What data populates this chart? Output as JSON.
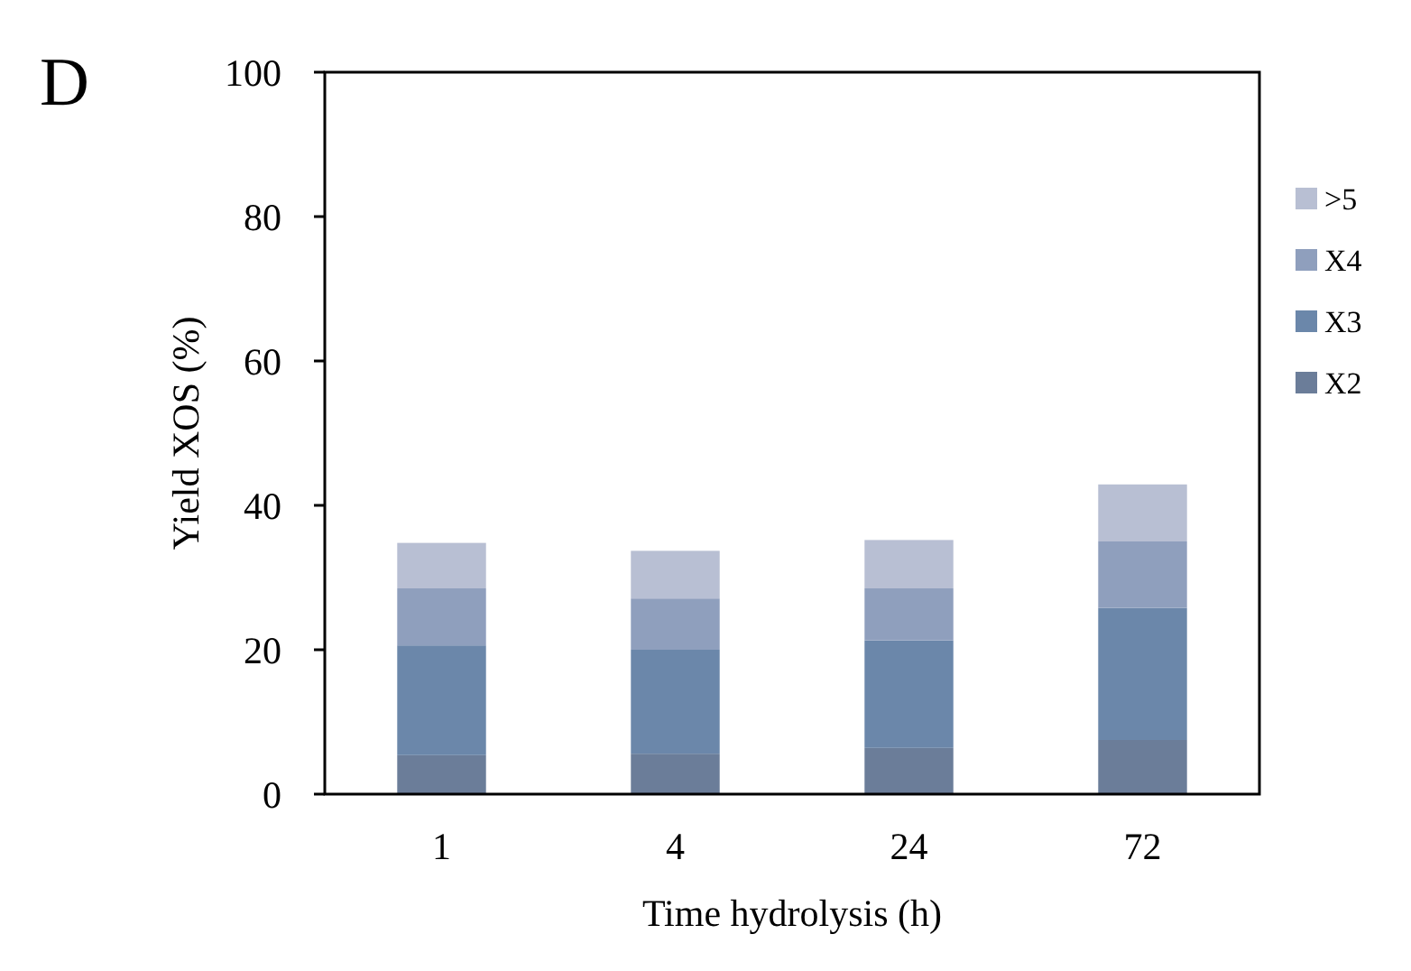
{
  "chart_data": {
    "type": "bar",
    "stacked": true,
    "xlabel": "Time hydrolysis (h)",
    "ylabel": "Yield XOS (%)",
    "annotations": [
      "D"
    ],
    "categories": [
      "1",
      "4",
      "24",
      "72"
    ],
    "series": [
      {
        "name": "X2",
        "color": "#6b7d99",
        "values": [
          5.4,
          5.6,
          6.4,
          7.5
        ]
      },
      {
        "name": "X3",
        "color": "#6b87aa",
        "values": [
          15.2,
          14.4,
          14.9,
          18.3
        ]
      },
      {
        "name": "X4",
        "color": "#8f9fbd",
        "values": [
          7.9,
          7.1,
          7.2,
          9.2
        ]
      },
      {
        "name": ">5",
        "color": "#b8bfd3",
        "values": [
          6.3,
          6.6,
          6.7,
          7.9
        ]
      }
    ],
    "ylim": [
      0,
      100
    ],
    "yticks": [
      0,
      20,
      40,
      60,
      80,
      100
    ],
    "grid": false,
    "legend": "right"
  }
}
